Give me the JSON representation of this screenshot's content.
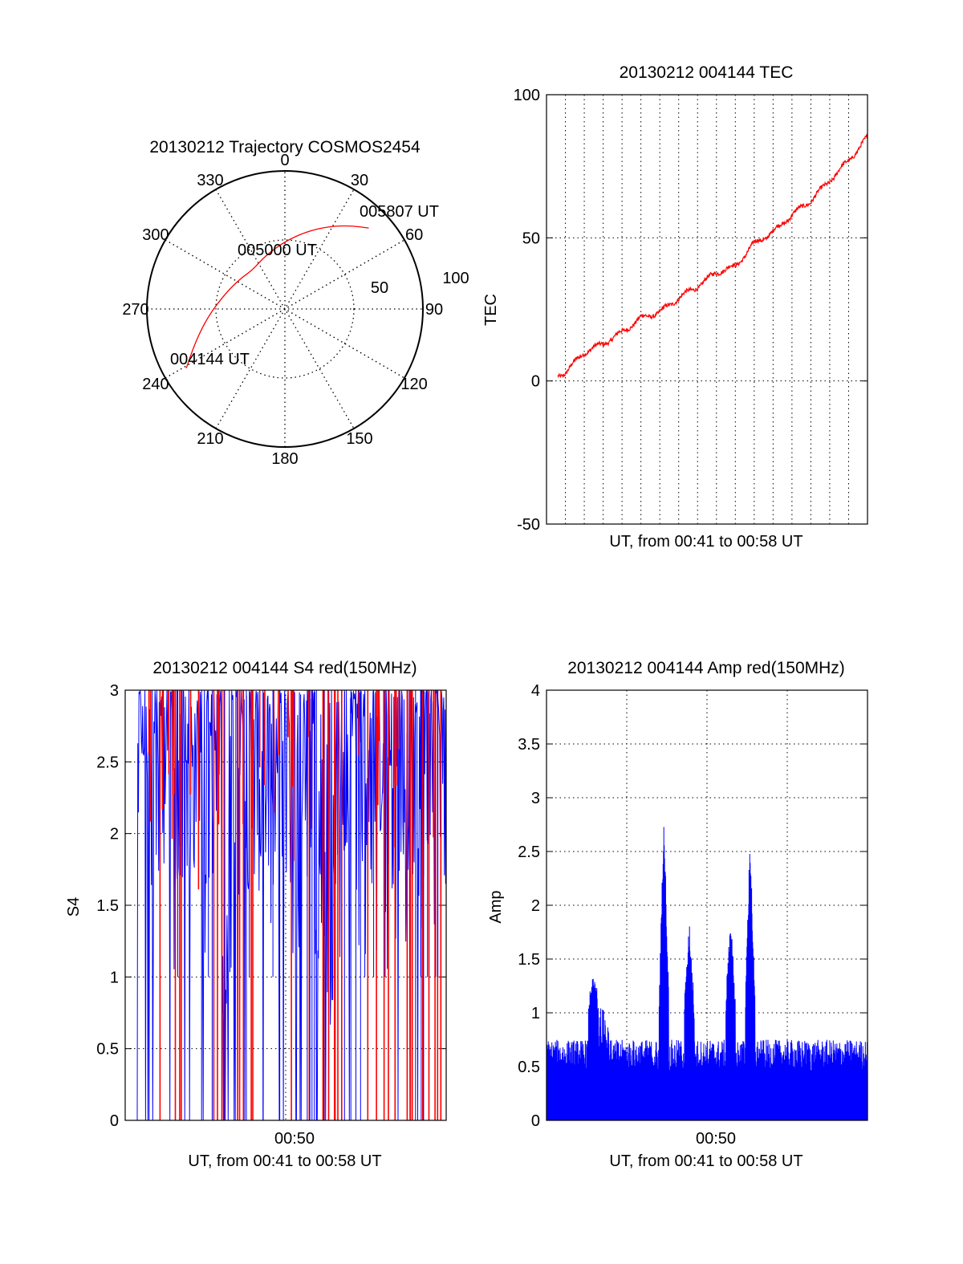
{
  "page": {
    "background": "#ffffff"
  },
  "polar": {
    "chart_data": {
      "type": "polar-trajectory",
      "title": "20130212 Trajectory COSMOS2454",
      "azimuth_labels": [
        "0",
        "30",
        "60",
        "90",
        "120",
        "150",
        "180",
        "210",
        "240",
        "270",
        "300",
        "330"
      ],
      "elevation_labels": [
        "50",
        "100"
      ],
      "trajectory": [
        {
          "az": 239,
          "el": 15
        },
        {
          "az": 250,
          "el": 28
        },
        {
          "az": 265,
          "el": 40
        },
        {
          "az": 285,
          "el": 50
        },
        {
          "az": 305,
          "el": 55
        },
        {
          "az": 320,
          "el": 57
        },
        {
          "az": 340,
          "el": 53
        },
        {
          "az": 0,
          "el": 46
        },
        {
          "az": 15,
          "el": 38
        },
        {
          "az": 28,
          "el": 29
        },
        {
          "az": 38,
          "el": 21
        },
        {
          "az": 46,
          "el": 14
        }
      ],
      "annotations": [
        {
          "text": "004144 UT"
        },
        {
          "text": "005000 UT"
        },
        {
          "text": "005807 UT"
        }
      ],
      "line_color": "#ff0000"
    }
  },
  "tec": {
    "chart_data": {
      "type": "line",
      "title": "20130212 004144 TEC",
      "xlabel": "UT, from 00:41 to 00:58 UT",
      "ylabel": "TEC",
      "ylim": [
        -50,
        100
      ],
      "yticks": [
        "-50",
        "0",
        "50",
        "100"
      ],
      "x_minutes_from_0041": [
        0,
        1,
        2,
        3,
        4,
        5,
        6,
        7,
        8,
        9,
        10,
        11,
        12,
        13,
        14,
        15,
        16,
        17
      ],
      "series": [
        {
          "values": [
            0,
            3,
            10,
            13,
            17,
            22,
            24,
            29,
            33,
            38,
            40,
            48,
            52,
            58,
            63,
            70,
            77,
            85
          ],
          "color": "#ff0000"
        }
      ],
      "grid": true
    }
  },
  "s4": {
    "chart_data": {
      "type": "line",
      "title": "20130212 004144 S4 red(150MHz)",
      "xlabel": "UT, from 00:41 to 00:58 UT",
      "ylabel": "S4",
      "ylim": [
        0,
        3
      ],
      "yticks": [
        "0",
        "0.5",
        "1",
        "1.5",
        "2",
        "2.5",
        "3"
      ],
      "xticks": [
        "00:50"
      ],
      "series": [
        {
          "color": "#0000ff"
        },
        {
          "color": "#ff0000"
        }
      ],
      "grid": true
    }
  },
  "amp": {
    "chart_data": {
      "type": "line",
      "title": "20130212 004144 Amp red(150MHz)",
      "xlabel": "UT, from 00:41 to 00:58 UT",
      "ylabel": "Amp",
      "ylim": [
        0,
        4
      ],
      "yticks": [
        "0",
        "0.5",
        "1",
        "1.5",
        "2",
        "2.5",
        "3",
        "3.5",
        "4"
      ],
      "xticks": [
        "00:50"
      ],
      "series": [
        {
          "color": "#0000ff",
          "baseline": 0.45,
          "peaks": [
            {
              "t": 6.6,
              "v": 2.55
            },
            {
              "t": 7.9,
              "v": 1.5
            },
            {
              "t": 10.0,
              "v": 1.6
            },
            {
              "t": 11.0,
              "v": 2.3
            },
            {
              "t": 3.0,
              "v": 1.1
            }
          ]
        }
      ],
      "grid": true
    }
  }
}
